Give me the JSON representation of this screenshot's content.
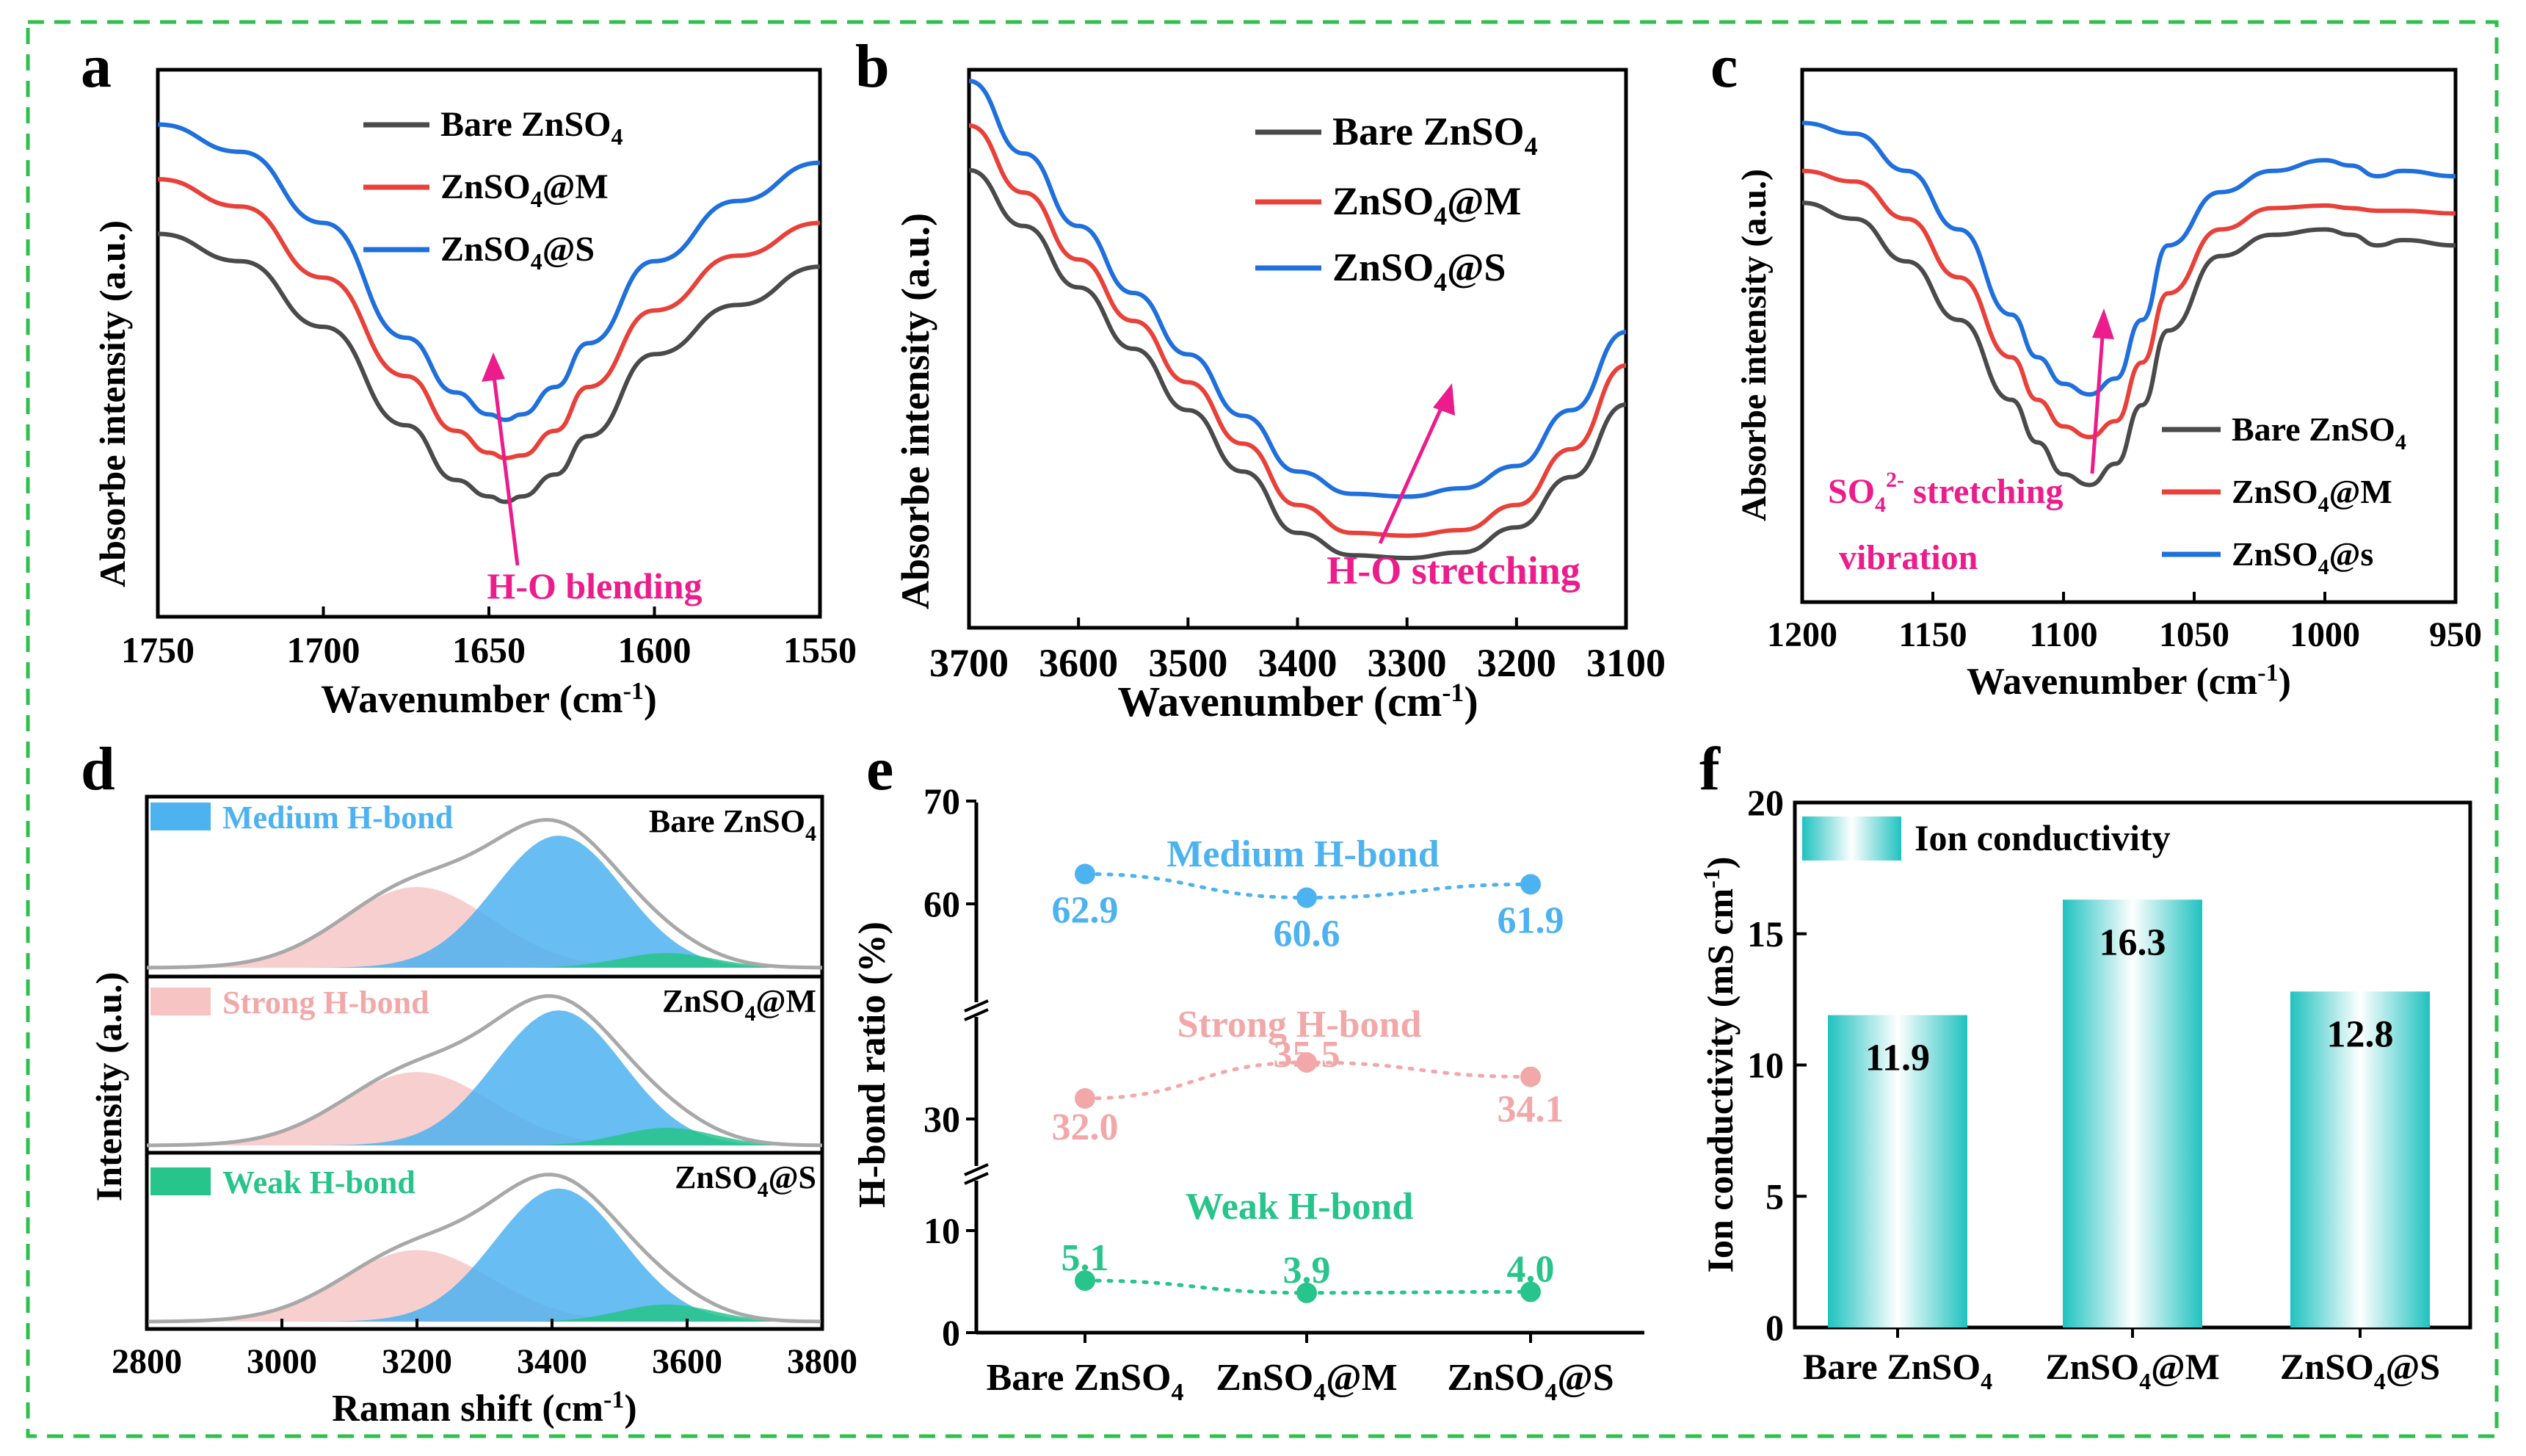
{
  "colors": {
    "black": "#000000",
    "gray": "#4a4a4a",
    "red": "#e8413a",
    "blue": "#1f6fdc",
    "magenta": "#ec1c8c",
    "medium": "#4db2f0",
    "strong": "#f2a8a8",
    "weak": "#27c48b",
    "teal": "#1fc2c0",
    "border": "#2fbf4f",
    "envelope": "#a8a8a8"
  },
  "panel_a": {
    "letter": "a",
    "ylabel": "Absorbe intensity (a.u.)",
    "xlabel": "Wavenumber (cm-1)",
    "annotation": "H-O blending",
    "legend": [
      {
        "name": "Bare ZnSO4",
        "color": "#4a4a4a"
      },
      {
        "name": "ZnSO4@M",
        "color": "#e8413a"
      },
      {
        "name": "ZnSO4@S",
        "color": "#1f6fdc"
      }
    ],
    "ticks": [
      "1750",
      "1700",
      "1650",
      "1600",
      "1550"
    ]
  },
  "panel_b": {
    "letter": "b",
    "ylabel": "Absorbe intensity (a.u.)",
    "xlabel": "Wavenumber (cm-1)",
    "annotation": "H-O stretching",
    "legend": [
      {
        "name": "Bare ZnSO4",
        "color": "#4a4a4a"
      },
      {
        "name": "ZnSO4@M",
        "color": "#e8413a"
      },
      {
        "name": "ZnSO4@S",
        "color": "#1f6fdc"
      }
    ],
    "ticks": [
      "3700",
      "3600",
      "3500",
      "3400",
      "3300",
      "3200",
      "3100"
    ]
  },
  "panel_c": {
    "letter": "c",
    "ylabel": "Absorbe intensity (a.u.)",
    "xlabel": "Wavenumber (cm-1)",
    "annotation_line1": "SO42- stretching",
    "annotation_line2": "vibration",
    "legend": [
      {
        "name": "Bare ZnSO4",
        "color": "#4a4a4a"
      },
      {
        "name": "ZnSO4@M",
        "color": "#e8413a"
      },
      {
        "name": "ZnSO4@s",
        "color": "#1f6fdc"
      }
    ],
    "ticks": [
      "1200",
      "1150",
      "1100",
      "1050",
      "1000",
      "950"
    ]
  },
  "panel_d": {
    "letter": "d",
    "ylabel": "Intensity (a.u.)",
    "xlabel": "Raman shift (cm-1)",
    "samples": [
      "Bare ZnSO4",
      "ZnSO4@M",
      "ZnSO4@S"
    ],
    "components": [
      "Medium H-bond",
      "Strong H-bond",
      "Weak H-bond"
    ],
    "ticks": [
      "2800",
      "3000",
      "3200",
      "3400",
      "3600",
      "3800"
    ]
  },
  "panel_e": {
    "letter": "e",
    "ylabel": "H-bond ratio (%)",
    "yticks": [
      "0",
      "10",
      "30",
      "60",
      "70"
    ],
    "categories": [
      "Bare ZnSO4",
      "ZnSO4@M",
      "ZnSO4@S"
    ],
    "series": [
      {
        "name": "Medium H-bond",
        "color": "#4db2f0",
        "values": [
          62.9,
          60.6,
          61.9
        ],
        "labels": [
          "62.9",
          "60.6",
          "61.9"
        ]
      },
      {
        "name": "Strong H-bond",
        "color": "#f2a8a8",
        "values": [
          32.0,
          35.5,
          34.1
        ],
        "labels": [
          "32.0",
          "35.5",
          "34.1"
        ]
      },
      {
        "name": "Weak H-bond",
        "color": "#27c48b",
        "values": [
          5.1,
          3.9,
          4.0
        ],
        "labels": [
          "5.1",
          "3.9",
          "4.0"
        ]
      }
    ]
  },
  "panel_f": {
    "letter": "f",
    "ylabel": "Ion conductivity (mS cm-1)",
    "legend": "Ion conductivity",
    "categories": [
      "Bare ZnSO4",
      "ZnSO4@M",
      "ZnSO4@S"
    ],
    "values": [
      11.9,
      16.3,
      12.8
    ],
    "labels": [
      "11.9",
      "16.3",
      "12.8"
    ],
    "yticks": [
      "0",
      "5",
      "10",
      "15",
      "20"
    ]
  },
  "chart_data": [
    {
      "type": "line",
      "title": "a",
      "xlabel": "Wavenumber (cm-1)",
      "ylabel": "Absorbe intensity (a.u.)",
      "xlim": [
        1750,
        1550
      ],
      "x": [
        1750,
        1725,
        1700,
        1675,
        1660,
        1650,
        1645,
        1640,
        1630,
        1620,
        1600,
        1575,
        1550
      ],
      "series": [
        {
          "name": "Bare ZnSO4",
          "values": [
            0.7,
            0.65,
            0.53,
            0.35,
            0.25,
            0.22,
            0.21,
            0.22,
            0.26,
            0.33,
            0.48,
            0.57,
            0.64
          ]
        },
        {
          "name": "ZnSO4@M",
          "values": [
            0.8,
            0.75,
            0.62,
            0.44,
            0.34,
            0.3,
            0.29,
            0.295,
            0.34,
            0.42,
            0.56,
            0.66,
            0.72
          ]
        },
        {
          "name": "ZnSO4@S",
          "values": [
            0.9,
            0.85,
            0.72,
            0.51,
            0.41,
            0.37,
            0.36,
            0.37,
            0.42,
            0.5,
            0.65,
            0.76,
            0.83
          ]
        }
      ],
      "annotations": [
        "H-O blending"
      ]
    },
    {
      "type": "line",
      "title": "b",
      "xlabel": "Wavenumber (cm-1)",
      "ylabel": "Absorbe intensity (a.u.)",
      "xlim": [
        3700,
        3100
      ],
      "x": [
        3700,
        3650,
        3600,
        3550,
        3500,
        3450,
        3400,
        3350,
        3300,
        3250,
        3200,
        3150,
        3100
      ],
      "series": [
        {
          "name": "Bare ZnSO4",
          "values": [
            0.82,
            0.72,
            0.61,
            0.5,
            0.39,
            0.28,
            0.17,
            0.13,
            0.125,
            0.135,
            0.18,
            0.27,
            0.4
          ]
        },
        {
          "name": "ZnSO4@M",
          "values": [
            0.9,
            0.78,
            0.66,
            0.55,
            0.44,
            0.33,
            0.22,
            0.17,
            0.165,
            0.175,
            0.22,
            0.32,
            0.47
          ]
        },
        {
          "name": "ZnSO4@S",
          "values": [
            0.98,
            0.85,
            0.72,
            0.6,
            0.49,
            0.38,
            0.28,
            0.24,
            0.235,
            0.25,
            0.29,
            0.39,
            0.53
          ]
        }
      ],
      "annotations": [
        "H-O stretching"
      ]
    },
    {
      "type": "line",
      "title": "c",
      "xlabel": "Wavenumber (cm-1)",
      "ylabel": "Absorbe intensity (a.u.)",
      "xlim": [
        1200,
        950
      ],
      "x": [
        1200,
        1180,
        1160,
        1140,
        1120,
        1110,
        1100,
        1090,
        1080,
        1070,
        1060,
        1040,
        1020,
        1000,
        990,
        980,
        970,
        950
      ],
      "series": [
        {
          "name": "Bare ZnSO4",
          "values": [
            0.75,
            0.72,
            0.64,
            0.53,
            0.38,
            0.3,
            0.24,
            0.22,
            0.26,
            0.37,
            0.51,
            0.65,
            0.69,
            0.7,
            0.69,
            0.67,
            0.68,
            0.67
          ]
        },
        {
          "name": "ZnSO4@M",
          "values": [
            0.81,
            0.79,
            0.72,
            0.61,
            0.46,
            0.38,
            0.33,
            0.31,
            0.34,
            0.45,
            0.58,
            0.7,
            0.74,
            0.745,
            0.74,
            0.735,
            0.735,
            0.73
          ]
        },
        {
          "name": "ZnSO4@s",
          "values": [
            0.9,
            0.88,
            0.81,
            0.7,
            0.54,
            0.46,
            0.41,
            0.39,
            0.42,
            0.53,
            0.67,
            0.77,
            0.81,
            0.83,
            0.82,
            0.8,
            0.81,
            0.8
          ]
        }
      ],
      "annotations": [
        "SO42- stretching",
        "vibration"
      ]
    },
    {
      "type": "area",
      "title": "d",
      "xlabel": "Raman shift (cm-1)",
      "ylabel": "Intensity (a.u.)",
      "xlim": [
        2800,
        3800
      ],
      "samples": [
        "Bare ZnSO4",
        "ZnSO4@M",
        "ZnSO4@S"
      ],
      "components": [
        {
          "name": "Strong H-bond",
          "center": 3200,
          "width": 110,
          "heights": [
            0.55,
            0.5,
            0.5
          ]
        },
        {
          "name": "Medium H-bond",
          "center": 3410,
          "width": 95,
          "heights": [
            0.9,
            0.92,
            0.93
          ]
        },
        {
          "name": "Weak H-bond",
          "center": 3570,
          "width": 70,
          "heights": [
            0.1,
            0.12,
            0.12
          ]
        }
      ]
    },
    {
      "type": "scatter",
      "title": "e",
      "ylabel": "H-bond ratio (%)",
      "categories": [
        "Bare ZnSO4",
        "ZnSO4@M",
        "ZnSO4@S"
      ],
      "series": [
        {
          "name": "Medium H-bond",
          "values": [
            62.9,
            60.6,
            61.9
          ]
        },
        {
          "name": "Strong H-bond",
          "values": [
            32.0,
            35.5,
            34.1
          ]
        },
        {
          "name": "Weak H-bond",
          "values": [
            5.1,
            3.9,
            4.0
          ]
        }
      ],
      "ylim_segments": [
        [
          0,
          10
        ],
        [
          30,
          40
        ],
        [
          55,
          70
        ]
      ]
    },
    {
      "type": "bar",
      "title": "f",
      "ylabel": "Ion conductivity (mS cm-1)",
      "categories": [
        "Bare ZnSO4",
        "ZnSO4@M",
        "ZnSO4@S"
      ],
      "values": [
        11.9,
        16.3,
        12.8
      ],
      "ylim": [
        0,
        20
      ],
      "legend": "Ion conductivity"
    }
  ]
}
